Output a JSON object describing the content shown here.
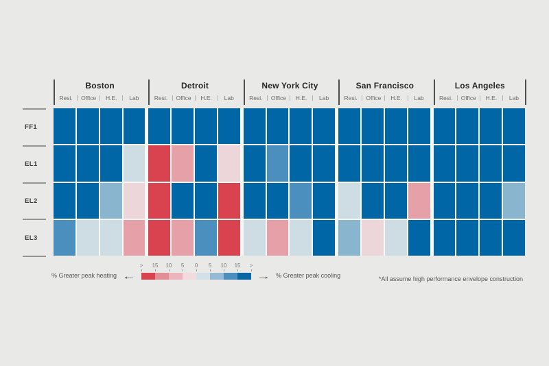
{
  "page": {
    "background": "#E9E9E7"
  },
  "chart_data": {
    "type": "heatmap",
    "rows": [
      "FF1",
      "EL1",
      "EL2",
      "EL3"
    ],
    "column_groups": [
      {
        "label": "Boston",
        "columns": [
          "Resi.",
          "Office",
          "H.E.",
          "Lab"
        ]
      },
      {
        "label": "Detroit",
        "columns": [
          "Resi.",
          "Office",
          "H.E.",
          "Lab"
        ]
      },
      {
        "label": "New York City",
        "columns": [
          "Resi.",
          "Office",
          "H.E.",
          "Lab"
        ]
      },
      {
        "label": "San Francisco",
        "columns": [
          "Resi.",
          "Office",
          "H.E.",
          "Lab"
        ]
      },
      {
        "label": "Los Angeles",
        "columns": [
          "Resi.",
          "Office",
          "H.E.",
          "Lab"
        ]
      }
    ],
    "palette": {
      "H3": "#D8434F",
      "H1": "#E5A0A8",
      "H0": "#EDD6D9",
      "C0": "#CEDCE4",
      "C1": "#8AB5CE",
      "C2": "#4A8FBD",
      "C3": "#0066A5"
    },
    "palette_meaning": {
      "H3": "greater peak heating >15%",
      "H1": "greater peak heating 5-10%",
      "H0": "greater peak heating 0-5%",
      "C0": "greater peak cooling 0-5%",
      "C1": "greater peak cooling 5-10%",
      "C2": "greater peak cooling 10-15%",
      "C3": "greater peak cooling >15%"
    },
    "values": [
      [
        "C3",
        "C3",
        "C3",
        "C3",
        "C3",
        "C3",
        "C3",
        "C3",
        "C3",
        "C3",
        "C3",
        "C3",
        "C3",
        "C3",
        "C3",
        "C3",
        "C3",
        "C3",
        "C3",
        "C3"
      ],
      [
        "C3",
        "C3",
        "C3",
        "C0",
        "H3",
        "H1",
        "C3",
        "H0",
        "C3",
        "C2",
        "C3",
        "C3",
        "C3",
        "C3",
        "C3",
        "C3",
        "C3",
        "C3",
        "C3",
        "C3"
      ],
      [
        "C3",
        "C3",
        "C1",
        "H0",
        "H3",
        "C3",
        "C3",
        "H3",
        "C3",
        "C3",
        "C2",
        "C3",
        "C0",
        "C3",
        "C3",
        "H1",
        "C3",
        "C3",
        "C3",
        "C1"
      ],
      [
        "C2",
        "C0",
        "C0",
        "H1",
        "H3",
        "H1",
        "C2",
        "H3",
        "C0",
        "H1",
        "C0",
        "C3",
        "C1",
        "H0",
        "C0",
        "C3",
        "C3",
        "C3",
        "C3",
        "C3"
      ]
    ]
  },
  "legend": {
    "left_label": "% Greater peak heating",
    "right_label": "% Greater peak cooling",
    "left_arrow": "←",
    "right_arrow": "→",
    "ticks": [
      ">",
      "15",
      "10",
      "5",
      "0",
      "5",
      "10",
      "15",
      ">"
    ],
    "colors": [
      "#D8434F",
      "#E28E96",
      "#EBB5BB",
      "#F2DBDE",
      "#D4E0E7",
      "#94BBD3",
      "#4A8FBD",
      "#0B67A4"
    ]
  },
  "footnote": "*All assume high performance envelope construction"
}
